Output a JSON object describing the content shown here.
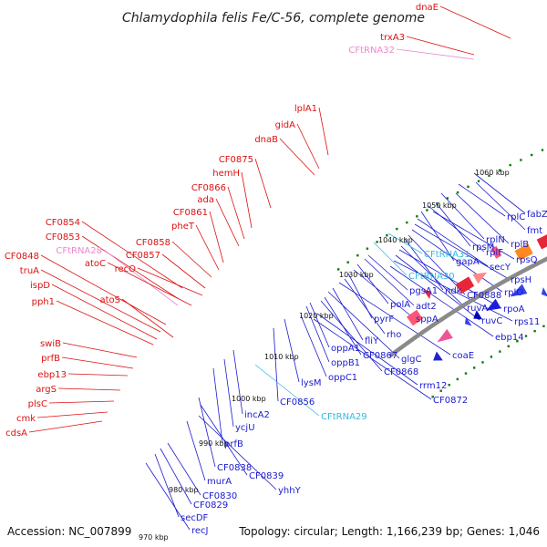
{
  "title": "Chlamydophila felis Fe/C-56, complete genome",
  "footer": {
    "accession": "Accession: NC_007899",
    "topology": "Topology: circular; Length: 1,166,239 bp; Genes: 1,046"
  },
  "colors": {
    "forward_label": "#dd1111",
    "reverse_label": "#1a1ad0",
    "trna_forward": "#ee88cc",
    "trna_reverse": "#33bbdd",
    "backbone": "#8a8a8a",
    "tick_dots": "#0a7a0a"
  },
  "ticks": [
    "970 kbp",
    "980 kbp",
    "990 kbp",
    "1000 kbp",
    "1010 kbp",
    "1020 kbp",
    "1030 kbp",
    "1040 kbp",
    "1050 kbp",
    "1060 kbp"
  ],
  "forward_labels": [
    "dnaE",
    "trxA3",
    "CFtRNA32",
    "lplA1",
    "gidA",
    "dnaB",
    "CF0875",
    "hemH",
    "CF0866",
    "ada",
    "CF0861",
    "pheT",
    "CF0858",
    "CF0857",
    "recO",
    "CF0854",
    "CF0853",
    "CFtRNA28",
    "atoC",
    "CF0848",
    "truA",
    "ispD",
    "pph1",
    "atoS",
    "swiB",
    "prfB",
    "ebp13",
    "argS",
    "plsC",
    "cmk",
    "cdsA"
  ],
  "reverse_labels": [
    "fabZ",
    "fmt",
    "rplC",
    "rplB",
    "rplN",
    "rpsM",
    "rplF",
    "rpsQ",
    "gapA",
    "secY",
    "rpsH",
    "rplO",
    "CF0888",
    "ndk",
    "ruvA",
    "rpoA",
    "ruvC",
    "rps11",
    "ebp14",
    "CFtRNA30",
    "CFtRNA31",
    "pgsA1",
    "adt2",
    "polA",
    "sppA",
    "pyrF",
    "rho",
    "coaE",
    "fliY",
    "glgC",
    "CF0867",
    "CF0868",
    "oppA1",
    "oppB1",
    "rrm12",
    "CF0872",
    "oppC1",
    "lysM",
    "CF0856",
    "CFtRNA29",
    "incA2",
    "ycjU",
    "prfB",
    "CF0838",
    "CF0839",
    "murA",
    "yhhY",
    "CF0830",
    "CF0829",
    "secDF",
    "recJ"
  ]
}
